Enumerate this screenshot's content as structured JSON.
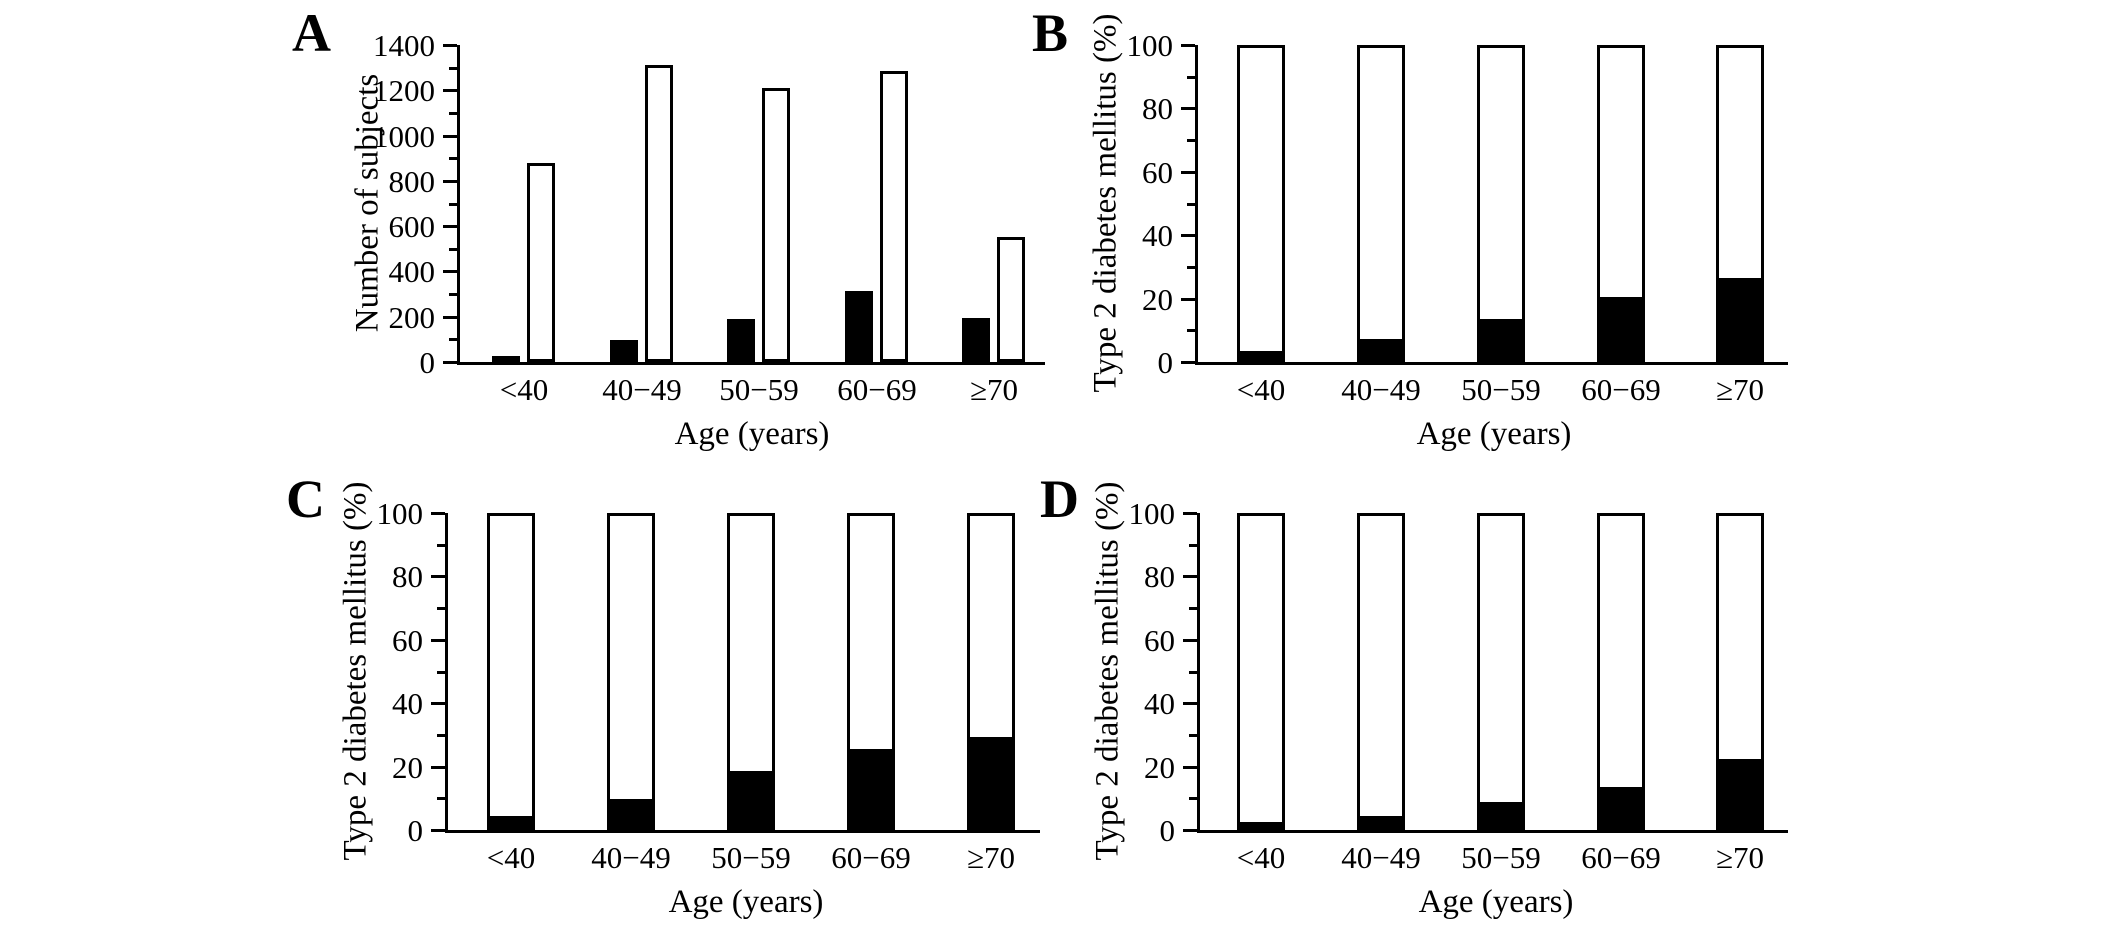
{
  "chart_data": [
    {
      "panel_label": "A",
      "type": "bar",
      "subtype": "grouped",
      "xlabel": "Age (years)",
      "ylabel": "Number of subjects",
      "ylim": [
        0,
        1400
      ],
      "ytick_major": 200,
      "ytick_minor": 100,
      "grid": "off",
      "legend": "none",
      "categories": [
        "<40",
        "40−49",
        "50−59",
        "60−69",
        "≥70"
      ],
      "series": [
        {
          "name": "black",
          "fill": "#000000",
          "values": [
            25,
            95,
            190,
            315,
            195
          ]
        },
        {
          "name": "white",
          "fill": "#ffffff",
          "values": [
            880,
            1310,
            1210,
            1285,
            550
          ]
        }
      ]
    },
    {
      "panel_label": "B",
      "type": "bar",
      "subtype": "stacked-100pct",
      "xlabel": "Age (years)",
      "ylabel": "Type 2 diabetes mellitus (%)",
      "ylim": [
        0,
        100
      ],
      "ytick_major": 20,
      "ytick_minor": 10,
      "grid": "off",
      "legend": "none",
      "categories": [
        "<40",
        "40−49",
        "50−59",
        "60−69",
        "≥70"
      ],
      "series": [
        {
          "name": "black",
          "fill": "#000000",
          "values": [
            2.5,
            6.5,
            13,
            20,
            26
          ]
        },
        {
          "name": "white",
          "fill": "#ffffff",
          "values": [
            97.5,
            93.5,
            87,
            80,
            74
          ]
        }
      ]
    },
    {
      "panel_label": "C",
      "type": "bar",
      "subtype": "stacked-100pct",
      "xlabel": "Age (years)",
      "ylabel": "Type 2 diabetes mellitus (%)",
      "ylim": [
        0,
        100
      ],
      "ytick_major": 20,
      "ytick_minor": 10,
      "grid": "off",
      "legend": "none",
      "categories": [
        "<40",
        "40−49",
        "50−59",
        "60−69",
        "≥70"
      ],
      "series": [
        {
          "name": "black",
          "fill": "#000000",
          "values": [
            3.5,
            9,
            18,
            25,
            29
          ]
        },
        {
          "name": "white",
          "fill": "#ffffff",
          "values": [
            96.5,
            91,
            82,
            75,
            71
          ]
        }
      ]
    },
    {
      "panel_label": "D",
      "type": "bar",
      "subtype": "stacked-100pct",
      "xlabel": "Age (years)",
      "ylabel": "Type 2 diabetes mellitus (%)",
      "ylim": [
        0,
        100
      ],
      "ytick_major": 20,
      "ytick_minor": 10,
      "grid": "off",
      "legend": "none",
      "categories": [
        "<40",
        "40−49",
        "50−59",
        "60−69",
        "≥70"
      ],
      "series": [
        {
          "name": "black",
          "fill": "#000000",
          "values": [
            1.5,
            3.5,
            8,
            13,
            22
          ]
        },
        {
          "name": "white",
          "fill": "#ffffff",
          "values": [
            98.5,
            96.5,
            92,
            87,
            78
          ]
        }
      ]
    }
  ]
}
